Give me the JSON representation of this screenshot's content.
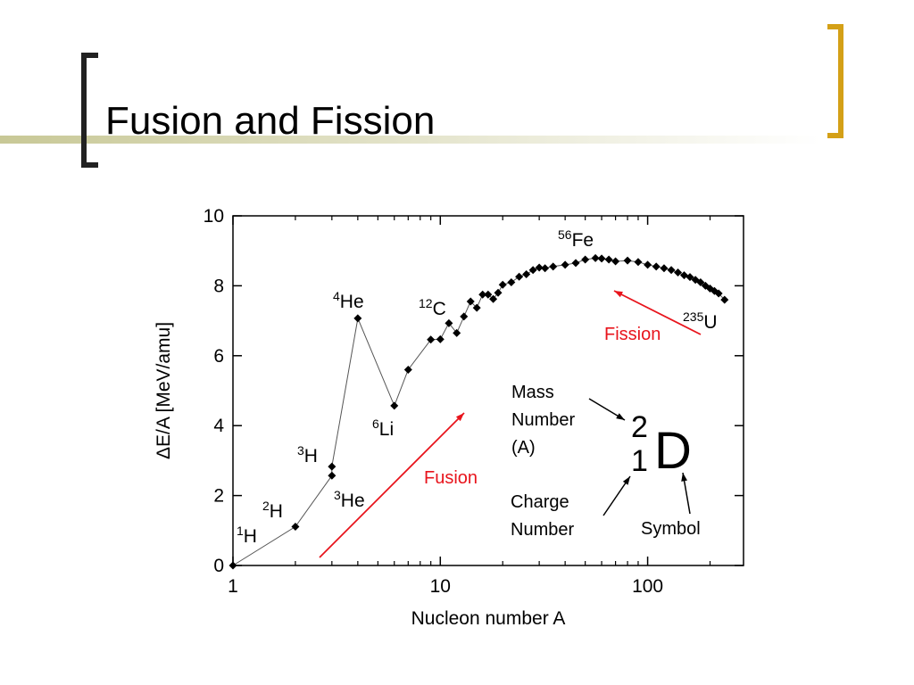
{
  "slide": {
    "title": "Fusion and Fission"
  },
  "chart_data": {
    "type": "scatter",
    "x_label": "Nucleon number  A",
    "y_label": "ΔE/A  [MeV/amu]",
    "x_log": true,
    "xlim": [
      1,
      290
    ],
    "xticks": [
      1,
      10,
      100
    ],
    "x_minor_ticks": [
      2,
      3,
      4,
      5,
      6,
      7,
      8,
      9,
      20,
      30,
      40,
      50,
      60,
      70,
      80,
      90,
      200
    ],
    "ylim": [
      0,
      10
    ],
    "yticks": [
      0,
      2,
      4,
      6,
      8,
      10
    ],
    "series": [
      {
        "color": "#000000",
        "x": [
          1,
          2,
          3,
          3,
          4,
          6,
          7,
          9,
          10,
          11,
          12,
          13,
          14,
          15,
          16,
          17,
          18,
          19,
          20,
          22,
          24,
          26,
          28,
          30,
          32,
          35,
          40,
          45,
          50,
          56,
          60,
          65,
          70,
          80,
          90,
          100,
          110,
          120,
          130,
          140,
          150,
          160,
          170,
          180,
          190,
          200,
          210,
          220,
          235
        ],
        "values": [
          0,
          1.11,
          2.57,
          2.83,
          7.07,
          4.57,
          5.6,
          6.46,
          6.47,
          6.93,
          6.65,
          7.12,
          7.55,
          7.37,
          7.75,
          7.75,
          7.62,
          7.8,
          8.03,
          8.1,
          8.26,
          8.33,
          8.45,
          8.52,
          8.5,
          8.55,
          8.6,
          8.65,
          8.75,
          8.79,
          8.78,
          8.75,
          8.7,
          8.72,
          8.68,
          8.6,
          8.55,
          8.5,
          8.45,
          8.38,
          8.3,
          8.25,
          8.17,
          8.1,
          8.0,
          7.92,
          7.85,
          7.78,
          7.6
        ]
      }
    ],
    "annotations": [
      {
        "mass": "1",
        "symbol": "H"
      },
      {
        "mass": "2",
        "symbol": "H"
      },
      {
        "mass": "3",
        "symbol": "H"
      },
      {
        "mass": "3",
        "symbol": "He"
      },
      {
        "mass": "4",
        "symbol": "He"
      },
      {
        "mass": "6",
        "symbol": "Li"
      },
      {
        "mass": "12",
        "symbol": "C"
      },
      {
        "mass": "56",
        "symbol": "Fe"
      },
      {
        "mass": "235",
        "symbol": "U"
      }
    ],
    "arrows": [
      {
        "label": "Fusion",
        "color": "#e8141c"
      },
      {
        "label": "Fission",
        "color": "#e8141c"
      }
    ],
    "inset": {
      "mass_number_label": [
        "Mass",
        "Number",
        "(A)"
      ],
      "charge_number_label": [
        "Charge",
        "Number"
      ],
      "symbol_label": "Symbol",
      "nuclide": {
        "mass": "2",
        "charge": "1",
        "symbol": "D"
      }
    }
  }
}
